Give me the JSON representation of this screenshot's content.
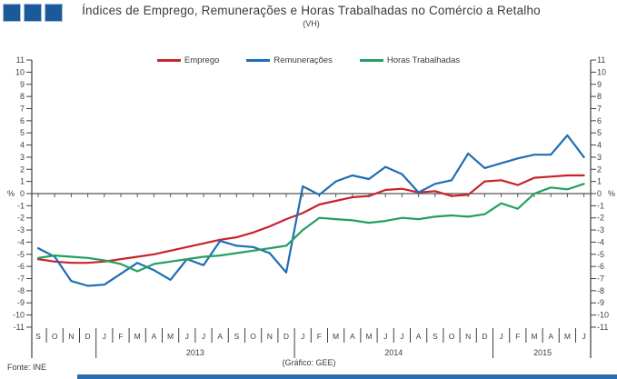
{
  "header": {
    "title": "Índices de Emprego, Remunerações e Horas Trabalhadas no Comércio a Retalho",
    "subtitle": "(VH)"
  },
  "legend": [
    {
      "label": "Emprego",
      "color": "#c9232b"
    },
    {
      "label": "Remunerações",
      "color": "#1f6db5"
    },
    {
      "label": "Horas Trabalhadas",
      "color": "#22a061"
    }
  ],
  "footer": {
    "source": "Fonte: INE",
    "credit": "(Gráfico: GEE)",
    "bar_color": "#2b6cb0"
  },
  "logo": {
    "square_color": "#1a5a9a",
    "square_count": 3
  },
  "chart_data": {
    "type": "line",
    "title": "Índices de Emprego, Remunerações e Horas Trabalhadas no Comércio a Retalho",
    "subtitle": "(VH)",
    "y_unit": "%",
    "ylim": [
      -11,
      11
    ],
    "y_step": 1,
    "grid": "zero-line-only",
    "legend_position": "top",
    "axis_color": "#404040",
    "zero_line_color": "#555555",
    "x_months": [
      "S",
      "O",
      "N",
      "D",
      "J",
      "F",
      "M",
      "A",
      "M",
      "J",
      "J",
      "A",
      "S",
      "O",
      "N",
      "D",
      "J",
      "F",
      "M",
      "A",
      "M",
      "J",
      "J",
      "A",
      "S",
      "O",
      "N",
      "D",
      "J",
      "F",
      "M",
      "A",
      "M",
      "J"
    ],
    "years": [
      {
        "label": "2013",
        "start": 4,
        "end": 15
      },
      {
        "label": "2014",
        "start": 16,
        "end": 27
      },
      {
        "label": "2015",
        "start": 28,
        "end": 33
      }
    ],
    "series": [
      {
        "name": "Emprego",
        "color": "#c9232b",
        "values": [
          -5.4,
          -5.6,
          -5.7,
          -5.7,
          -5.6,
          -5.4,
          -5.2,
          -5.0,
          -4.7,
          -4.4,
          -4.1,
          -3.8,
          -3.6,
          -3.2,
          -2.7,
          -2.1,
          -1.6,
          -0.9,
          -0.6,
          -0.3,
          -0.2,
          0.3,
          0.4,
          0.1,
          0.2,
          -0.2,
          -0.1,
          1.0,
          1.1,
          0.7,
          1.3,
          1.4,
          1.5,
          1.5
        ]
      },
      {
        "name": "Remunerações",
        "color": "#1f6db5",
        "values": [
          -4.5,
          -5.2,
          -7.2,
          -7.6,
          -7.5,
          -6.6,
          -5.7,
          -6.3,
          -7.1,
          -5.4,
          -5.9,
          -3.9,
          -4.3,
          -4.4,
          -4.9,
          -6.5,
          0.6,
          -0.1,
          1.0,
          1.5,
          1.2,
          2.2,
          1.6,
          0.1,
          0.8,
          1.1,
          3.3,
          2.1,
          2.5,
          2.9,
          3.2,
          3.2,
          4.8,
          3.0
        ]
      },
      {
        "name": "Horas Trabalhadas",
        "color": "#22a061",
        "values": [
          -5.3,
          -5.1,
          -5.2,
          -5.3,
          -5.5,
          -5.8,
          -6.4,
          -5.8,
          -5.6,
          -5.4,
          -5.2,
          -5.1,
          -4.9,
          -4.7,
          -4.5,
          -4.3,
          -3.0,
          -2.0,
          -2.1,
          -2.2,
          -2.4,
          -2.25,
          -2.0,
          -2.1,
          -1.9,
          -1.8,
          -1.9,
          -1.7,
          -0.8,
          -1.25,
          0.0,
          0.5,
          0.35,
          0.8
        ]
      }
    ]
  }
}
